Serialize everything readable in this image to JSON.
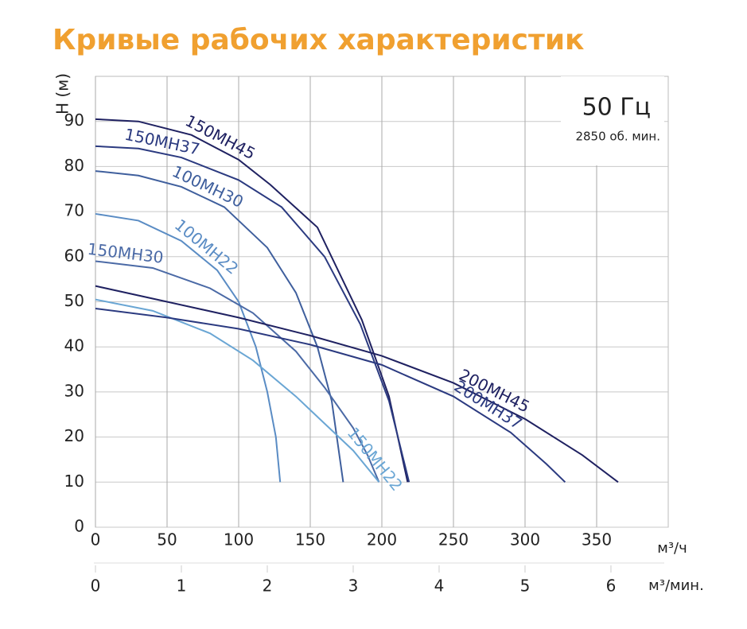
{
  "chart_data": {
    "type": "line",
    "title": "Кривые рабочих характеристик",
    "annotations": {
      "frequency": "50 Гц",
      "speed": "2850 об. мин."
    },
    "ylabel": "H (м)",
    "xlabel": "м³/ч",
    "x2label": "м³/мин.",
    "xlim": [
      0,
      400
    ],
    "xticks": [
      0,
      50,
      100,
      150,
      200,
      250,
      300,
      350
    ],
    "ylim": [
      0,
      100
    ],
    "yticks": [
      0,
      10,
      20,
      30,
      40,
      50,
      60,
      70,
      80,
      90
    ],
    "x2lim": [
      0,
      6.667
    ],
    "x2ticks": [
      0,
      1,
      2,
      3,
      4,
      5,
      6
    ],
    "grid": true,
    "series": [
      {
        "name": "150MH45",
        "color": "#1f2161",
        "x": [
          0,
          30,
          67,
          100,
          122,
          155,
          186,
          205,
          218
        ],
        "values": [
          90.5,
          90,
          87,
          81.5,
          76,
          66.5,
          46,
          29,
          10
        ]
      },
      {
        "name": "150MH37",
        "color": "#2b3a80",
        "x": [
          0,
          30,
          60,
          100,
          130,
          160,
          185,
          205,
          219
        ],
        "values": [
          84.5,
          84,
          82,
          77,
          71,
          60,
          45,
          28,
          10
        ]
      },
      {
        "name": "100MH30",
        "color": "#3f5f9d",
        "x": [
          0,
          30,
          60,
          90,
          120,
          140,
          155,
          165,
          173
        ],
        "values": [
          79,
          78,
          75.5,
          71,
          62,
          52,
          40,
          28,
          10
        ]
      },
      {
        "name": "100MH22",
        "color": "#5a8cc4",
        "x": [
          0,
          30,
          60,
          85,
          100,
          112,
          120,
          126,
          129
        ],
        "values": [
          69.5,
          68,
          63.5,
          57,
          50,
          40,
          30,
          20,
          10
        ]
      },
      {
        "name": "150MH30",
        "color": "#4b6aa6",
        "x": [
          0,
          40,
          80,
          110,
          140,
          160,
          180,
          190,
          198
        ],
        "values": [
          59,
          57.5,
          53,
          47.5,
          39,
          31,
          22,
          16,
          10
        ]
      },
      {
        "name": "150MH22",
        "color": "#6aa6d4",
        "x": [
          0,
          40,
          80,
          110,
          140,
          160,
          180,
          198
        ],
        "values": [
          50.5,
          48,
          43,
          37,
          29,
          23,
          17,
          10
        ]
      },
      {
        "name": "200MH45",
        "color": "#1f2161",
        "x": [
          0,
          50,
          100,
          150,
          200,
          250,
          300,
          340,
          365
        ],
        "values": [
          53.5,
          50,
          46.5,
          42.5,
          38,
          32,
          24,
          16,
          10
        ]
      },
      {
        "name": "200MH37",
        "color": "#2b3a80",
        "x": [
          0,
          50,
          100,
          150,
          200,
          250,
          290,
          315,
          328
        ],
        "values": [
          48.5,
          46.5,
          44,
          40.5,
          36,
          29,
          21,
          14,
          10
        ]
      }
    ]
  }
}
